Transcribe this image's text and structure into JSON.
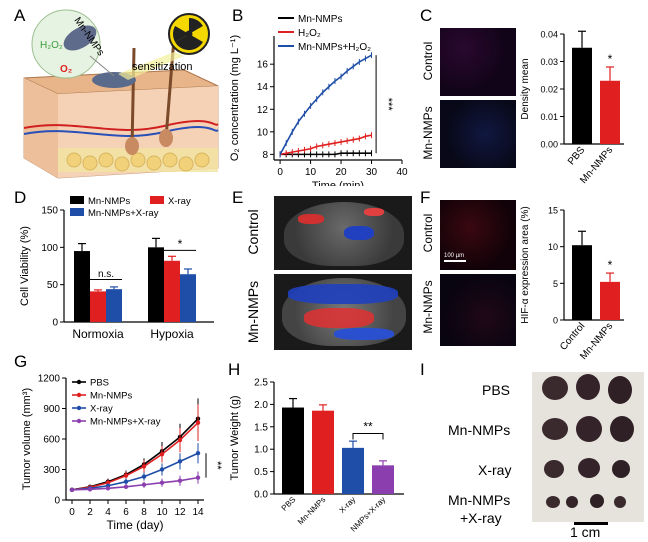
{
  "panel_labels": {
    "A": "A",
    "B": "B",
    "C": "C",
    "D": "D",
    "E": "E",
    "F": "F",
    "G": "G",
    "H": "H",
    "I": "I"
  },
  "panel_a": {
    "mn_label": "Mn-NMPs",
    "h2o2_label": "H₂O₂",
    "o2_label": "O₂",
    "sensitization_label": "sensitization",
    "colors": {
      "green": "#3a9e3a",
      "red": "#e02020",
      "skin": "#f4c9a8",
      "dermis": "#f8dcc8",
      "fat": "#f3e3a0"
    }
  },
  "chart_data": [
    {
      "id": "B",
      "type": "line",
      "xlabel": "Time (min)",
      "ylabel": "O₂ concentration (mg L⁻¹)",
      "xlim": [
        -2,
        40
      ],
      "ylim": [
        7.5,
        18.5
      ],
      "xticks": [
        0,
        10,
        20,
        30,
        40
      ],
      "yticks": [
        8,
        10,
        12,
        14,
        16
      ],
      "significance": "***",
      "legend_position": "top-left",
      "series": [
        {
          "name": "Mn-NMPs",
          "color": "#000000",
          "x": [
            0,
            2,
            4,
            6,
            8,
            10,
            12,
            14,
            16,
            18,
            20,
            22,
            24,
            26,
            28,
            30
          ],
          "y": [
            8,
            8,
            8,
            8,
            8,
            8,
            8,
            8,
            8,
            8,
            8.1,
            8.1,
            8.1,
            8.1,
            8.1,
            8.1
          ]
        },
        {
          "name": "H₂O₂",
          "color": "#e02020",
          "x": [
            0,
            2,
            4,
            6,
            8,
            10,
            12,
            14,
            16,
            18,
            20,
            22,
            24,
            26,
            28,
            30
          ],
          "y": [
            8,
            8.1,
            8.2,
            8.3,
            8.4,
            8.5,
            8.7,
            8.8,
            8.9,
            9.0,
            9.1,
            9.2,
            9.3,
            9.4,
            9.6,
            9.7
          ]
        },
        {
          "name": "Mn-NMPs+H₂O₂",
          "color": "#1f4ea8",
          "x": [
            0,
            2,
            4,
            6,
            8,
            10,
            12,
            14,
            16,
            18,
            20,
            22,
            24,
            26,
            28,
            30
          ],
          "y": [
            8,
            9.0,
            10.0,
            10.9,
            11.6,
            12.3,
            12.9,
            13.5,
            14.0,
            14.5,
            14.9,
            15.4,
            15.8,
            16.2,
            16.5,
            16.8
          ]
        }
      ]
    },
    {
      "id": "C",
      "type": "bar",
      "categories": [
        "PBS",
        "Mn-NMPs"
      ],
      "values": [
        0.035,
        0.023
      ],
      "errors": [
        0.006,
        0.005
      ],
      "colors": [
        "#000000",
        "#e02020"
      ],
      "ylabel": "Density mean",
      "ylim": [
        0,
        0.04
      ],
      "yticks": [
        0.0,
        0.01,
        0.02,
        0.03,
        0.04
      ],
      "ytick_labels": [
        "0.00",
        "0.01",
        "0.02",
        "0.03",
        "0.04"
      ],
      "significance": "*"
    },
    {
      "id": "D",
      "type": "bar",
      "categories": [
        "Normoxia",
        "Hypoxia"
      ],
      "ylabel": "Cell Viability (%)",
      "ylim": [
        0,
        150
      ],
      "yticks": [
        0,
        50,
        100,
        150
      ],
      "annotations": [
        "n.s.",
        "*"
      ],
      "legend_position": "top",
      "series": [
        {
          "name": "Mn-NMPs",
          "color": "#000000",
          "values": [
            95,
            100
          ],
          "errors": [
            10,
            12
          ]
        },
        {
          "name": "X-ray",
          "color": "#e02020",
          "values": [
            41,
            82
          ],
          "errors": [
            2,
            6
          ]
        },
        {
          "name": "Mn-NMPs+X-ray",
          "color": "#1f4ea8",
          "values": [
            44,
            64
          ],
          "errors": [
            3,
            7
          ]
        }
      ]
    },
    {
      "id": "F",
      "type": "bar",
      "categories": [
        "Control",
        "Mn-NMPs"
      ],
      "values": [
        10.2,
        5.2
      ],
      "errors": [
        1.9,
        1.2
      ],
      "colors": [
        "#000000",
        "#e02020"
      ],
      "ylabel": "HIF-α expression area (%)",
      "ylim": [
        0,
        15
      ],
      "yticks": [
        0,
        5,
        10,
        15
      ],
      "significance": "*"
    },
    {
      "id": "G",
      "type": "line",
      "xlabel": "Time (day)",
      "ylabel": "Tumor volume (mm³)",
      "xlim": [
        0,
        14
      ],
      "ylim": [
        0,
        1200
      ],
      "xticks": [
        0,
        2,
        4,
        6,
        8,
        10,
        12,
        14
      ],
      "yticks": [
        0,
        300,
        600,
        900,
        1200
      ],
      "significance": "**",
      "legend_position": "top-left",
      "series": [
        {
          "name": "PBS",
          "color": "#000000",
          "x": [
            0,
            2,
            4,
            6,
            8,
            10,
            12,
            14
          ],
          "y": [
            100,
            130,
            180,
            250,
            350,
            480,
            620,
            800
          ],
          "err": [
            10,
            20,
            30,
            40,
            60,
            90,
            130,
            200
          ]
        },
        {
          "name": "Mn-NMPs",
          "color": "#e02020",
          "x": [
            0,
            2,
            4,
            6,
            8,
            10,
            12,
            14
          ],
          "y": [
            100,
            125,
            170,
            240,
            330,
            450,
            590,
            760
          ],
          "err": [
            10,
            20,
            30,
            40,
            60,
            80,
            120,
            180
          ]
        },
        {
          "name": "X-ray",
          "color": "#1f4ea8",
          "x": [
            0,
            2,
            4,
            6,
            8,
            10,
            12,
            14
          ],
          "y": [
            100,
            115,
            140,
            180,
            230,
            300,
            380,
            460
          ],
          "err": [
            10,
            15,
            20,
            30,
            40,
            60,
            80,
            100
          ]
        },
        {
          "name": "Mn-NMPs+X-ray",
          "color": "#8b3fae",
          "x": [
            0,
            2,
            4,
            6,
            8,
            10,
            12,
            14
          ],
          "y": [
            100,
            105,
            115,
            130,
            150,
            170,
            190,
            220
          ],
          "err": [
            10,
            10,
            15,
            20,
            30,
            40,
            50,
            60
          ]
        }
      ]
    },
    {
      "id": "H",
      "type": "bar",
      "categories": [
        "PBS",
        "Mn-NMPs",
        "X-ray",
        "Mn-NMPs+X-ray"
      ],
      "tick_labels": [
        "PBS",
        "Mn-NMPs",
        "X-ray",
        "NMPs+X-ray"
      ],
      "values": [
        1.93,
        1.86,
        1.03,
        0.64
      ],
      "errors": [
        0.2,
        0.13,
        0.15,
        0.1
      ],
      "colors": [
        "#000000",
        "#e02020",
        "#1f4ea8",
        "#8b3fae"
      ],
      "ylabel": "Tumor Weight (g)",
      "ylim": [
        0,
        2.5
      ],
      "yticks": [
        0.0,
        0.5,
        1.0,
        1.5,
        2.0,
        2.5
      ],
      "ytick_labels": [
        "0.0",
        "0.5",
        "1.0",
        "1.5",
        "2.0",
        "2.5"
      ],
      "significance": "**"
    }
  ],
  "panel_c": {
    "row_labels": [
      "Control",
      "Mn-NMPs"
    ]
  },
  "panel_e": {
    "row_labels": [
      "Control",
      "Mn-NMPs"
    ]
  },
  "panel_f": {
    "row_labels": [
      "Control",
      "Mn-NMPs"
    ],
    "scale_label": "100 µm"
  },
  "panel_i": {
    "row_labels": [
      "PBS",
      "Mn-NMPs",
      "X-ray",
      "Mn-NMPs",
      "+X-ray"
    ],
    "scale_label": "1 cm"
  }
}
